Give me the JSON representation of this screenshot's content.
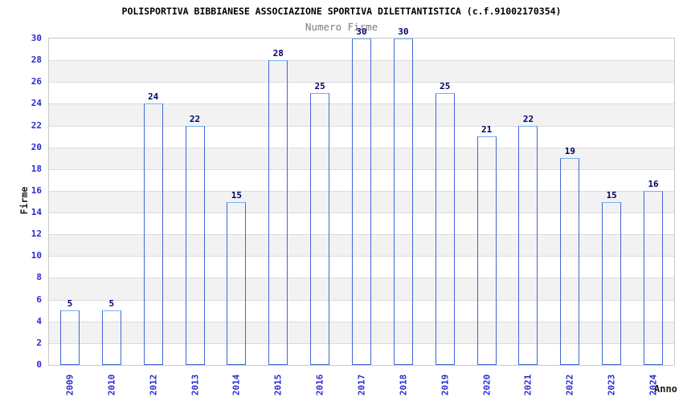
{
  "header": {
    "title": "POLISPORTIVA BIBBIANESE ASSOCIAZIONE SPORTIVA DILETTANTISTICA (c.f.91002170354)",
    "subtitle": "Numero Firme"
  },
  "chart_data": {
    "type": "bar",
    "title": "POLISPORTIVA BIBBIANESE ASSOCIAZIONE SPORTIVA DILETTANTISTICA (c.f.91002170354)",
    "subtitle": "Numero Firme",
    "xlabel": "Anno",
    "ylabel": "Firme",
    "categories": [
      "2009",
      "2010",
      "2012",
      "2013",
      "2014",
      "2015",
      "2016",
      "2017",
      "2018",
      "2019",
      "2020",
      "2021",
      "2022",
      "2023",
      "2024"
    ],
    "values": [
      5,
      5,
      24,
      22,
      15,
      28,
      25,
      30,
      30,
      25,
      21,
      22,
      19,
      15,
      16
    ],
    "ylim": [
      0,
      30
    ],
    "yticks": [
      0,
      2,
      4,
      6,
      8,
      10,
      12,
      14,
      16,
      18,
      20,
      22,
      24,
      26,
      28,
      30
    ],
    "grid": true,
    "legend": "none",
    "layout_hints": {
      "bands_alternate_every": 2,
      "value_labels_above_bars": true,
      "x_labels_rotated_degrees": 90
    },
    "colors": {
      "bar_dark": "#16167a",
      "bar_highlight": "#ccd4f2",
      "bar_border": "#3f66d6",
      "tick_label": "#2b2bd0",
      "value_label": "#00006b",
      "band_gray": "#f2f2f2",
      "gridline": "#dcdcdc",
      "plot_border": "#c9c9c9",
      "subtitle_gray": "#7d7d7d",
      "title_black": "#000000"
    }
  }
}
